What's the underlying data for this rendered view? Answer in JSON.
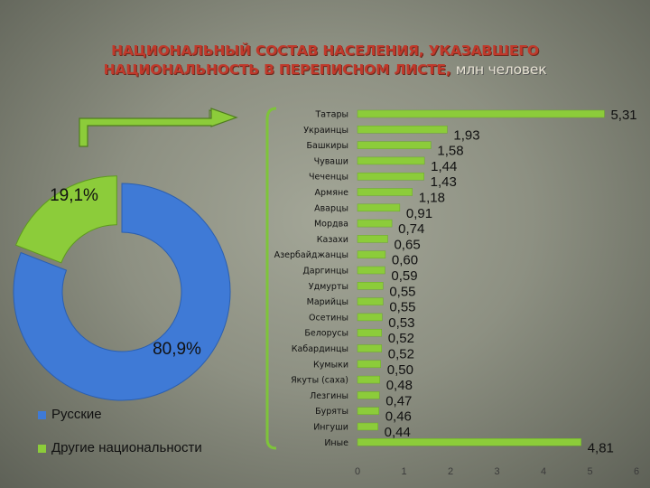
{
  "title": {
    "line1": "НАЦИОНАЛЬНЫЙ СОСТАВ НАСЕЛЕНИЯ, УКАЗАВШЕГО",
    "line2": "НАЦИОНАЛЬНОСТЬ В ПЕРЕПИСНОМ ЛИСТЕ,",
    "unit": "млн человек"
  },
  "chart_data": [
    {
      "type": "pie",
      "variant": "doughnut",
      "slices": [
        {
          "name": "Русские",
          "value": 80.9,
          "label": "80,9%",
          "color": "#3f7ad6"
        },
        {
          "name": "Другие национальности",
          "value": 19.1,
          "label": "19,1%",
          "color": "#8ccc3a"
        }
      ],
      "legend_position": "bottom-left"
    },
    {
      "type": "bar",
      "orientation": "horizontal",
      "categories": [
        "Татары",
        "Украинцы",
        "Башкиры",
        "Чуваши",
        "Чеченцы",
        "Армяне",
        "Аварцы",
        "Мордва",
        "Казахи",
        "Азербайджанцы",
        "Даргинцы",
        "Удмурты",
        "Марийцы",
        "Осетины",
        "Белорусы",
        "Кабардинцы",
        "Кумыки",
        "Якуты (саха)",
        "Лезгины",
        "Буряты",
        "Ингуши",
        "Иные"
      ],
      "values": [
        5.31,
        1.93,
        1.58,
        1.44,
        1.43,
        1.18,
        0.91,
        0.74,
        0.65,
        0.6,
        0.59,
        0.55,
        0.55,
        0.53,
        0.52,
        0.52,
        0.5,
        0.48,
        0.47,
        0.46,
        0.44,
        4.81
      ],
      "value_labels": [
        "5,31",
        "1,93",
        "1,58",
        "1,44",
        "1,43",
        "1,18",
        "0,91",
        "0,74",
        "0,65",
        "0,60",
        "0,59",
        "0,55",
        "0,55",
        "0,53",
        "0,52",
        "0,52",
        "0,50",
        "0,48",
        "0,47",
        "0,46",
        "0,44",
        "4,81"
      ],
      "xlim": [
        0,
        6
      ],
      "x_ticks": [
        0,
        1,
        2,
        3,
        4,
        5,
        6
      ],
      "bar_color": "#8ccc3a",
      "grid": false
    }
  ],
  "colors": {
    "title_red": "#c0392b",
    "green": "#8ccc3a",
    "blue": "#3f7ad6"
  }
}
